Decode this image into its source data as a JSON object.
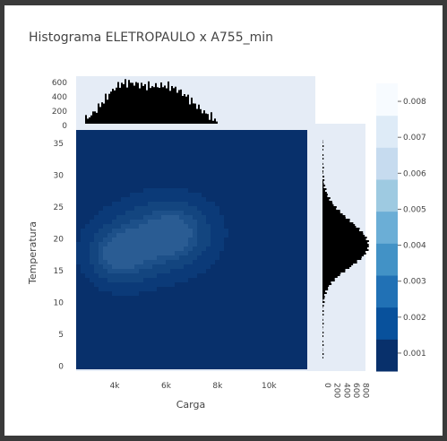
{
  "chart_data": {
    "type": "heatmap",
    "title": "Histograma ELETROPAULO x A755_min",
    "xlabel": "Carga",
    "ylabel": "Temperatura",
    "x_ticks": [
      "4k",
      "6k",
      "8k",
      "10k"
    ],
    "x_tick_values": [
      4000,
      6000,
      8000,
      10000
    ],
    "xlim": [
      2500,
      11800
    ],
    "y_ticks": [
      "0",
      "5",
      "10",
      "15",
      "20",
      "25",
      "30",
      "35"
    ],
    "y_tick_values": [
      0,
      5,
      10,
      15,
      20,
      25,
      30,
      35
    ],
    "ylim": [
      -0.5,
      37.5
    ],
    "top_hist_ticks": [
      "0",
      "200",
      "400",
      "600"
    ],
    "top_hist_values": [
      0,
      200,
      400,
      600
    ],
    "top_hist_ylim": [
      0,
      650
    ],
    "right_hist_ticks": [
      "0",
      "200",
      "400",
      "600",
      "800"
    ],
    "right_hist_values": [
      0,
      200,
      400,
      600,
      800
    ],
    "right_hist_xlim": [
      0,
      900
    ],
    "colorbar_ticks": [
      "0.001",
      "0.002",
      "0.003",
      "0.004",
      "0.005",
      "0.006",
      "0.007",
      "0.008"
    ],
    "colorbar_values": [
      0.001,
      0.002,
      0.003,
      0.004,
      0.005,
      0.006,
      0.007,
      0.008
    ],
    "colorbar_range": [
      0.0005,
      0.0085
    ],
    "colorscale": [
      "#08306b",
      "#08519c",
      "#2171b5",
      "#4292c6",
      "#6baed6",
      "#9ecae1",
      "#c6dbef",
      "#deebf7",
      "#f7fbff"
    ],
    "colors": {
      "plot_bg": "#e5ecf6",
      "density_bg": "#08306b",
      "hist_bar": "#000000"
    },
    "density_clusters": [
      {
        "x": 4200,
        "y": 17.5,
        "sx": 700,
        "sy": 2.6,
        "weight": 1.0
      },
      {
        "x": 6300,
        "y": 21.0,
        "sx": 900,
        "sy": 3.0,
        "weight": 0.9
      },
      {
        "x": 5300,
        "y": 19.5,
        "sx": 1100,
        "sy": 3.5,
        "weight": 0.6
      }
    ]
  }
}
